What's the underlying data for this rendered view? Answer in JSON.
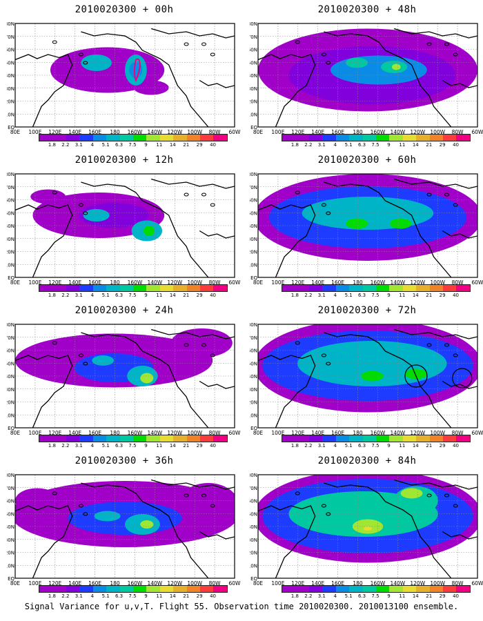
{
  "figure": {
    "caption": "Signal Variance for u,v,T. Flight 55. Observation time 2010020300. 2010013100 ensemble.",
    "lon_labels": [
      "80E",
      "100E",
      "120E",
      "140E",
      "160E",
      "180",
      "160W",
      "140W",
      "120W",
      "100W",
      "80W",
      "60W"
    ],
    "lat_labels": [
      "80N",
      "70N",
      "60N",
      "50N",
      "40N",
      "30N",
      "20N",
      "10N",
      "EQ"
    ],
    "colorbar": {
      "levels": [
        "1.8",
        "2.2",
        "3.1",
        "4",
        "5.1",
        "6.3",
        "7.5",
        "9",
        "11",
        "14",
        "21",
        "29",
        "40"
      ],
      "colors": [
        "#a000c8",
        "#8200dc",
        "#1e3cff",
        "#0a8ce6",
        "#00b4c8",
        "#00c8a0",
        "#00dc00",
        "#a0e632",
        "#e6dc32",
        "#e6af2d",
        "#f08228",
        "#fa3c3c",
        "#f00082"
      ]
    },
    "panels": [
      {
        "title": "2010020300 + 00h"
      },
      {
        "title": "2010020300 + 12h"
      },
      {
        "title": "2010020300 + 24h"
      },
      {
        "title": "2010020300 + 36h"
      },
      {
        "title": "2010020300 + 48h"
      },
      {
        "title": "2010020300 + 60h"
      },
      {
        "title": "2010020300 + 72h"
      },
      {
        "title": "2010020300 + 84h"
      }
    ]
  }
}
